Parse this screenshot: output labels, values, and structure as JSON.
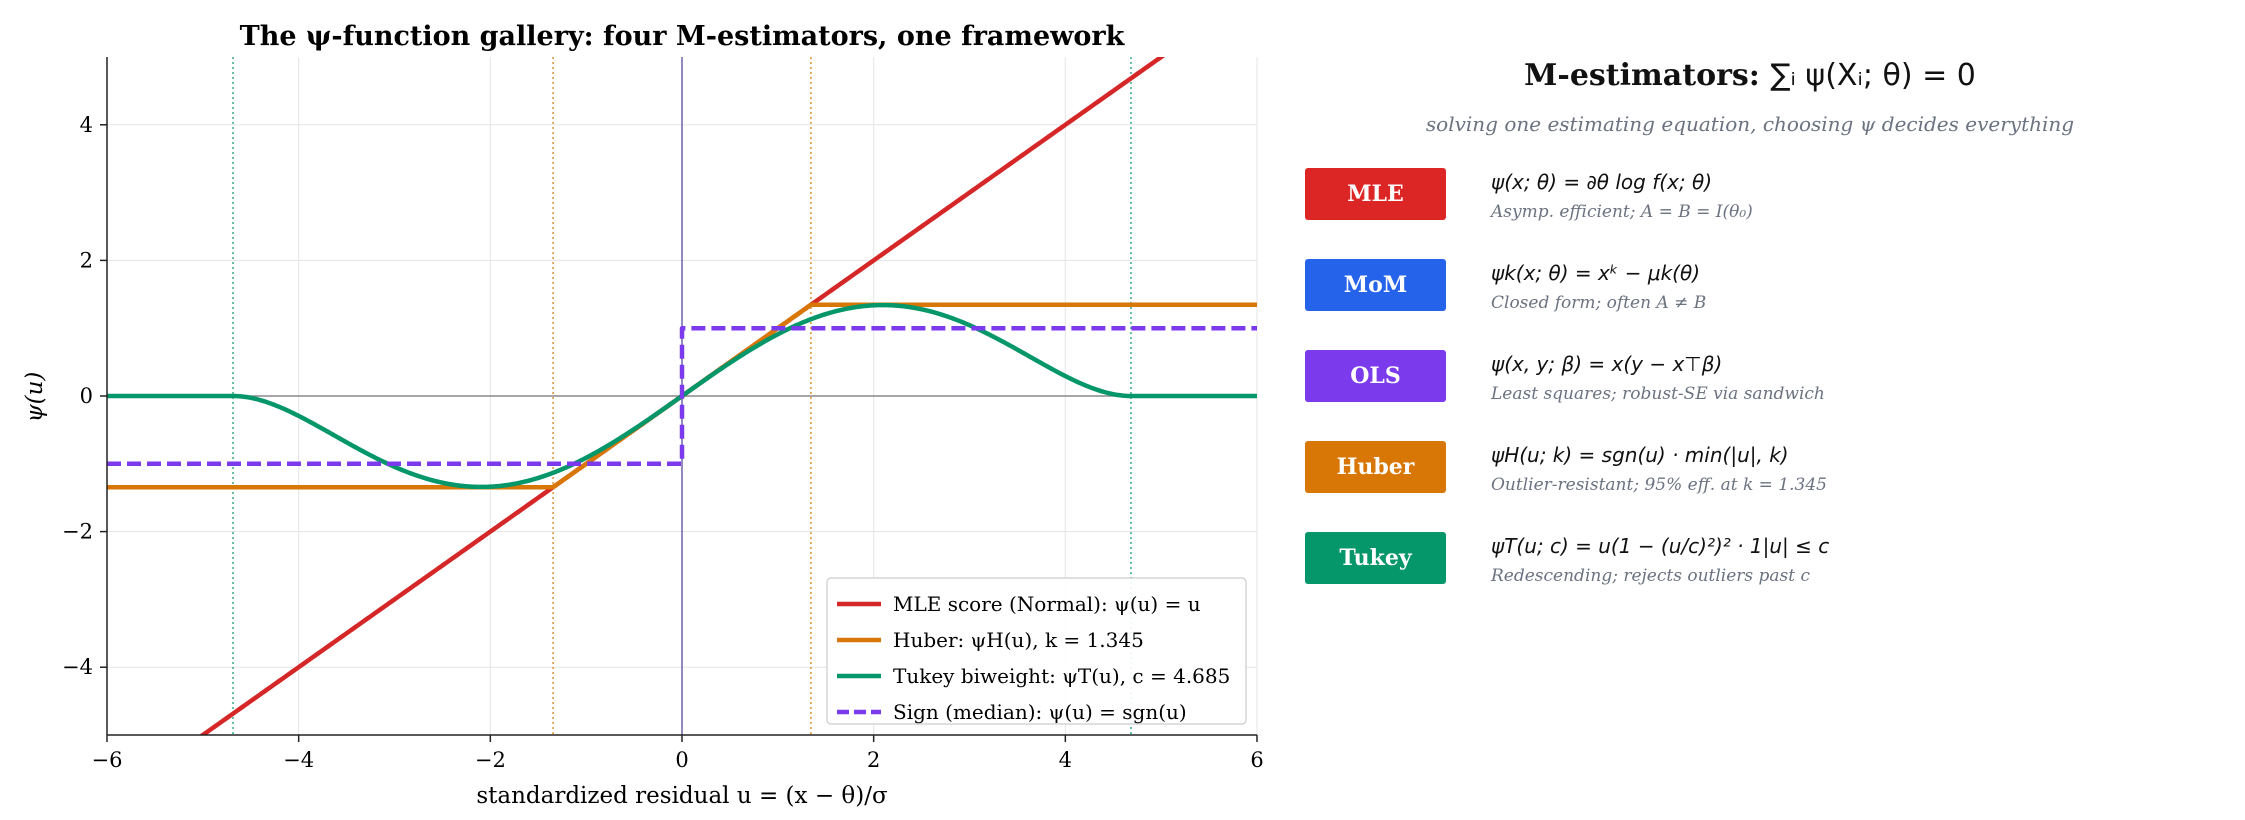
{
  "chart_data": {
    "type": "line",
    "title": "The ψ-function gallery: four M-estimators, one framework",
    "xlabel": "standardized residual u = (x − θ)/σ",
    "ylabel": "ψ(u)",
    "xlim": [
      -6,
      6
    ],
    "ylim": [
      -5,
      5
    ],
    "xticks": [
      -6,
      -4,
      -2,
      0,
      2,
      4,
      6
    ],
    "yticks": [
      -4,
      -2,
      0,
      2,
      4
    ],
    "xtick_labels": [
      "−6",
      "−4",
      "−2",
      "0",
      "2",
      "4",
      "6"
    ],
    "ytick_labels": [
      "−4",
      "−2",
      "0",
      "2",
      "4"
    ],
    "grid": true,
    "legend_position": "lower-right",
    "huber_k": 1.345,
    "tukey_c": 4.685,
    "vertical_reference_lines": [
      -4.685,
      -1.345,
      1.345,
      4.685
    ],
    "series": [
      {
        "name": "MLE score (Normal): ψ(u) = u",
        "function": "identity",
        "color": "#d62728",
        "style": "solid"
      },
      {
        "name": "Huber: ψH(u), k = 1.345",
        "function": "huber",
        "color": "#d97706",
        "style": "solid"
      },
      {
        "name": "Tukey biweight: ψT(u), c = 4.685",
        "function": "tukey",
        "color": "#059669",
        "style": "solid"
      },
      {
        "name": "Sign (median): ψ(u) = sgn(u)",
        "function": "sign",
        "color": "#7c3aed",
        "style": "dashed"
      }
    ]
  },
  "panel": {
    "title": "M-estimators: ∑ψ(Xᵢ; θ) = 0",
    "title_bold": "M-estimators: ",
    "title_math": "∑ᵢ ψ(Xᵢ; θ) = 0",
    "subtitle": "solving one estimating equation, choosing ψ decides everything",
    "estimators": [
      {
        "label": "MLE",
        "color": "#dc2626",
        "formula": "ψ(x; θ) = ∂θ log f(x; θ)",
        "note": "Asymp. efficient; A = B = I(θ₀)"
      },
      {
        "label": "MoM",
        "color": "#2563eb",
        "formula": "ψk(x; θ) = xᵏ − μk(θ)",
        "note": "Closed form; often A ≠ B"
      },
      {
        "label": "OLS",
        "color": "#7c3aed",
        "formula": "ψ(x, y; β) = x(y − x⊤β)",
        "note": "Least squares; robust-SE via sandwich"
      },
      {
        "label": "Huber",
        "color": "#d97706",
        "formula": "ψH(u; k) = sgn(u) · min(|u|, k)",
        "note": "Outlier-resistant; 95% eff. at k = 1.345"
      },
      {
        "label": "Tukey",
        "color": "#059669",
        "formula": "ψT(u; c) = u(1 − (u/c)²)² · 1|u| ≤ c",
        "note": "Redescending; rejects outliers past c"
      }
    ]
  }
}
